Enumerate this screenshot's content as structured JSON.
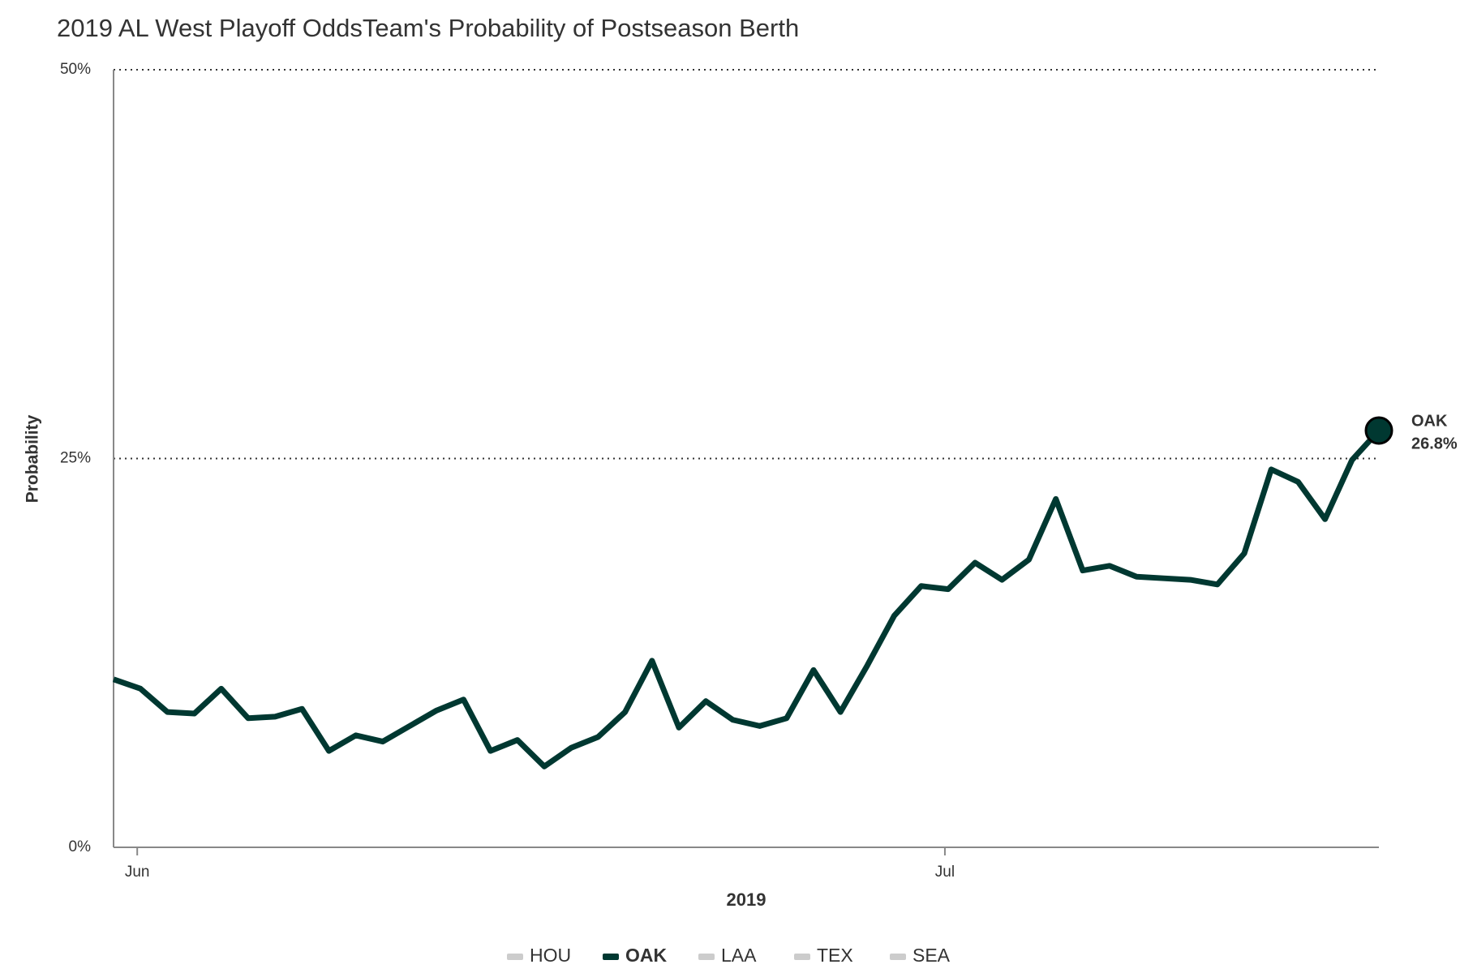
{
  "chart_data": {
    "type": "line",
    "title": "2019 AL West Playoff OddsTeam's Probability of Postseason Berth",
    "x_label": "2019",
    "y_label": "Probability",
    "categories": [
      null,
      "Jun",
      null,
      null,
      null,
      null,
      null,
      null,
      null,
      null,
      null,
      null,
      null,
      null,
      null,
      null,
      null,
      null,
      null,
      null,
      null,
      null,
      null,
      null,
      null,
      null,
      null,
      null,
      null,
      null,
      null,
      "Jul",
      null,
      null,
      null,
      null,
      null,
      null,
      null,
      null,
      null,
      null,
      null,
      null,
      null,
      null,
      null,
      null
    ],
    "series": [
      {
        "name": "OAK",
        "color": "#003831",
        "values": [
          10.8,
          10.2,
          8.7,
          8.6,
          10.2,
          8.3,
          8.4,
          8.9,
          6.2,
          7.2,
          6.8,
          7.8,
          8.8,
          9.5,
          6.2,
          6.9,
          5.2,
          6.4,
          7.1,
          8.7,
          12.0,
          7.7,
          9.4,
          8.2,
          7.8,
          8.3,
          11.4,
          8.7,
          11.7,
          14.9,
          16.8,
          16.6,
          18.3,
          17.2,
          18.5,
          22.4,
          17.8,
          18.1,
          17.4,
          17.3,
          17.2,
          16.9,
          18.9,
          24.3,
          23.5,
          21.1,
          24.9,
          26.8
        ],
        "value_labels": [
          null,
          null,
          null,
          null,
          null,
          null,
          null,
          null,
          null,
          null,
          null,
          null,
          null,
          null,
          null,
          null,
          null,
          null,
          null,
          null,
          null,
          null,
          null,
          null,
          null,
          null,
          null,
          null,
          null,
          null,
          null,
          null,
          null,
          null,
          null,
          null,
          null,
          null,
          null,
          null,
          null,
          null,
          null,
          null,
          null,
          null,
          null,
          "26.8%"
        ]
      }
    ],
    "legend": [
      {
        "name": "HOU",
        "color": "#cccccc",
        "active": false
      },
      {
        "name": "OAK",
        "color": "#003831",
        "active": true
      },
      {
        "name": "LAA",
        "color": "#cccccc",
        "active": false
      },
      {
        "name": "TEX",
        "color": "#cccccc",
        "active": false
      },
      {
        "name": "SEA",
        "color": "#cccccc",
        "active": false
      }
    ],
    "ylim": [
      0,
      50
    ],
    "yticks": [
      {
        "value": 0,
        "label": "0%"
      },
      {
        "value": 25,
        "label": "25%"
      },
      {
        "value": 50,
        "label": "50%"
      }
    ],
    "grid": true
  }
}
